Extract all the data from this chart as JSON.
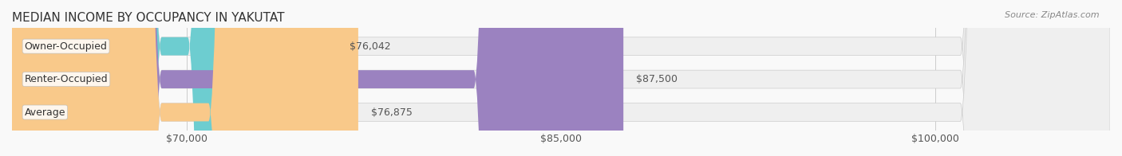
{
  "title": "MEDIAN INCOME BY OCCUPANCY IN YAKUTAT",
  "source": "Source: ZipAtlas.com",
  "categories": [
    "Owner-Occupied",
    "Renter-Occupied",
    "Average"
  ],
  "values": [
    76042,
    87500,
    76875
  ],
  "bar_colors": [
    "#6dcdd0",
    "#9b82c0",
    "#f9c98a"
  ],
  "bar_labels": [
    "$76,042",
    "$87,500",
    "$76,875"
  ],
  "bar_bg_color": "#f0f0f0",
  "xlim_min": 63000,
  "xlim_max": 107000,
  "xticks": [
    70000,
    85000,
    100000
  ],
  "xtick_labels": [
    "$70,000",
    "$85,000",
    "$100,000"
  ],
  "title_fontsize": 11,
  "source_fontsize": 8,
  "label_fontsize": 9,
  "tick_fontsize": 9,
  "bar_height": 0.55,
  "background_color": "#f9f9f9",
  "bar_bg_alpha": 1.0
}
